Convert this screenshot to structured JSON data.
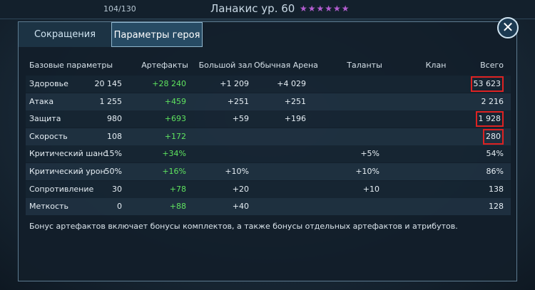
{
  "top_bar": {
    "energy": "104/130",
    "hero": "Ланакис ур. 60"
  },
  "tabs": [
    "Сокращения",
    "Параметры героя"
  ],
  "active_tab": 1,
  "table": {
    "columns": [
      "Базовые параметры",
      "Артефакты",
      "Большой зал",
      "Обычная Арена",
      "Таланты",
      "Клан",
      "Всего"
    ],
    "rows": [
      [
        "Здоровье",
        "20 145",
        "+28 240",
        "+1 209",
        "+4 029",
        null,
        null,
        "53 623"
      ],
      [
        "Атака",
        "1 255",
        "+459",
        "+251",
        "+251",
        null,
        null,
        "2 216"
      ],
      [
        "Защита",
        "980",
        "+693",
        "+59",
        "+196",
        null,
        null,
        "1 928"
      ],
      [
        "Скорость",
        "108",
        "+172",
        null,
        null,
        null,
        null,
        "280"
      ],
      [
        "Критический шанс",
        "15%",
        "+34%",
        null,
        null,
        "+5%",
        null,
        "54%"
      ],
      [
        "Критический урон",
        "50%",
        "+16%",
        "+10%",
        null,
        "+10%",
        null,
        "86%"
      ],
      [
        "Сопротивление",
        "30",
        "+78",
        "+20",
        null,
        "+10",
        null,
        "138"
      ],
      [
        "Меткость",
        "0",
        "+88",
        "+40",
        null,
        null,
        null,
        "128"
      ]
    ],
    "highlighted_totals": [
      0,
      2,
      3
    ]
  },
  "note": "Бонус артефактов включает бонусы комплектов, а также бонусы отдельных артефактов и атрибутов."
}
